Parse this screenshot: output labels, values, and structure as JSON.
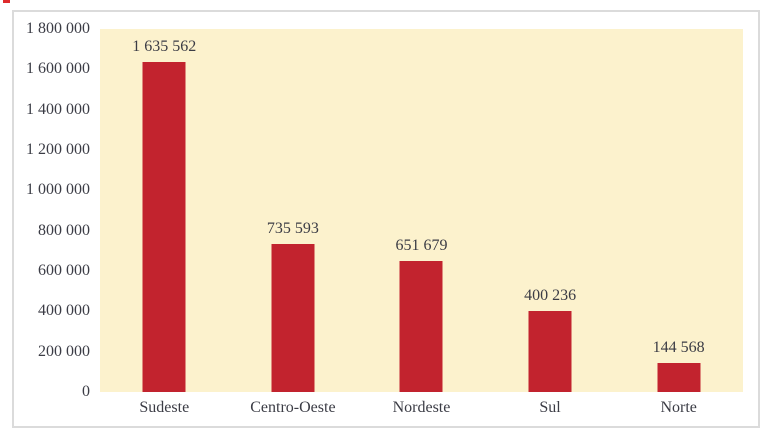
{
  "chart_data": {
    "type": "bar",
    "categories": [
      "Sudeste",
      "Centro-Oeste",
      "Nordeste",
      "Sul",
      "Norte"
    ],
    "values": [
      1635562,
      735593,
      651679,
      400236,
      144568
    ],
    "value_labels": [
      "1 635 562",
      "735 593",
      "651 679",
      "400 236",
      "144 568"
    ],
    "ylim": [
      0,
      1800000
    ],
    "yticks": [
      {
        "label": "1 800 000",
        "value": 1800000
      },
      {
        "label": "1 600 000",
        "value": 1600000
      },
      {
        "label": "1 400 000",
        "value": 1400000
      },
      {
        "label": "1 200 000",
        "value": 1200000
      },
      {
        "label": "1 000 000",
        "value": 1000000
      },
      {
        "label": "800 000",
        "value": 800000
      },
      {
        "label": "600 000",
        "value": 600000
      },
      {
        "label": "400 000",
        "value": 400000
      },
      {
        "label": "200 000",
        "value": 200000
      },
      {
        "label": "0",
        "value": 0
      }
    ],
    "grid": "off",
    "legend": "none",
    "colors": {
      "bar": "#C2232E",
      "plot_background": "#FCF2CD",
      "card_border": "#DBDBDB",
      "text": "#3B3C45",
      "corner_artifact": "#DE2A2C"
    }
  }
}
